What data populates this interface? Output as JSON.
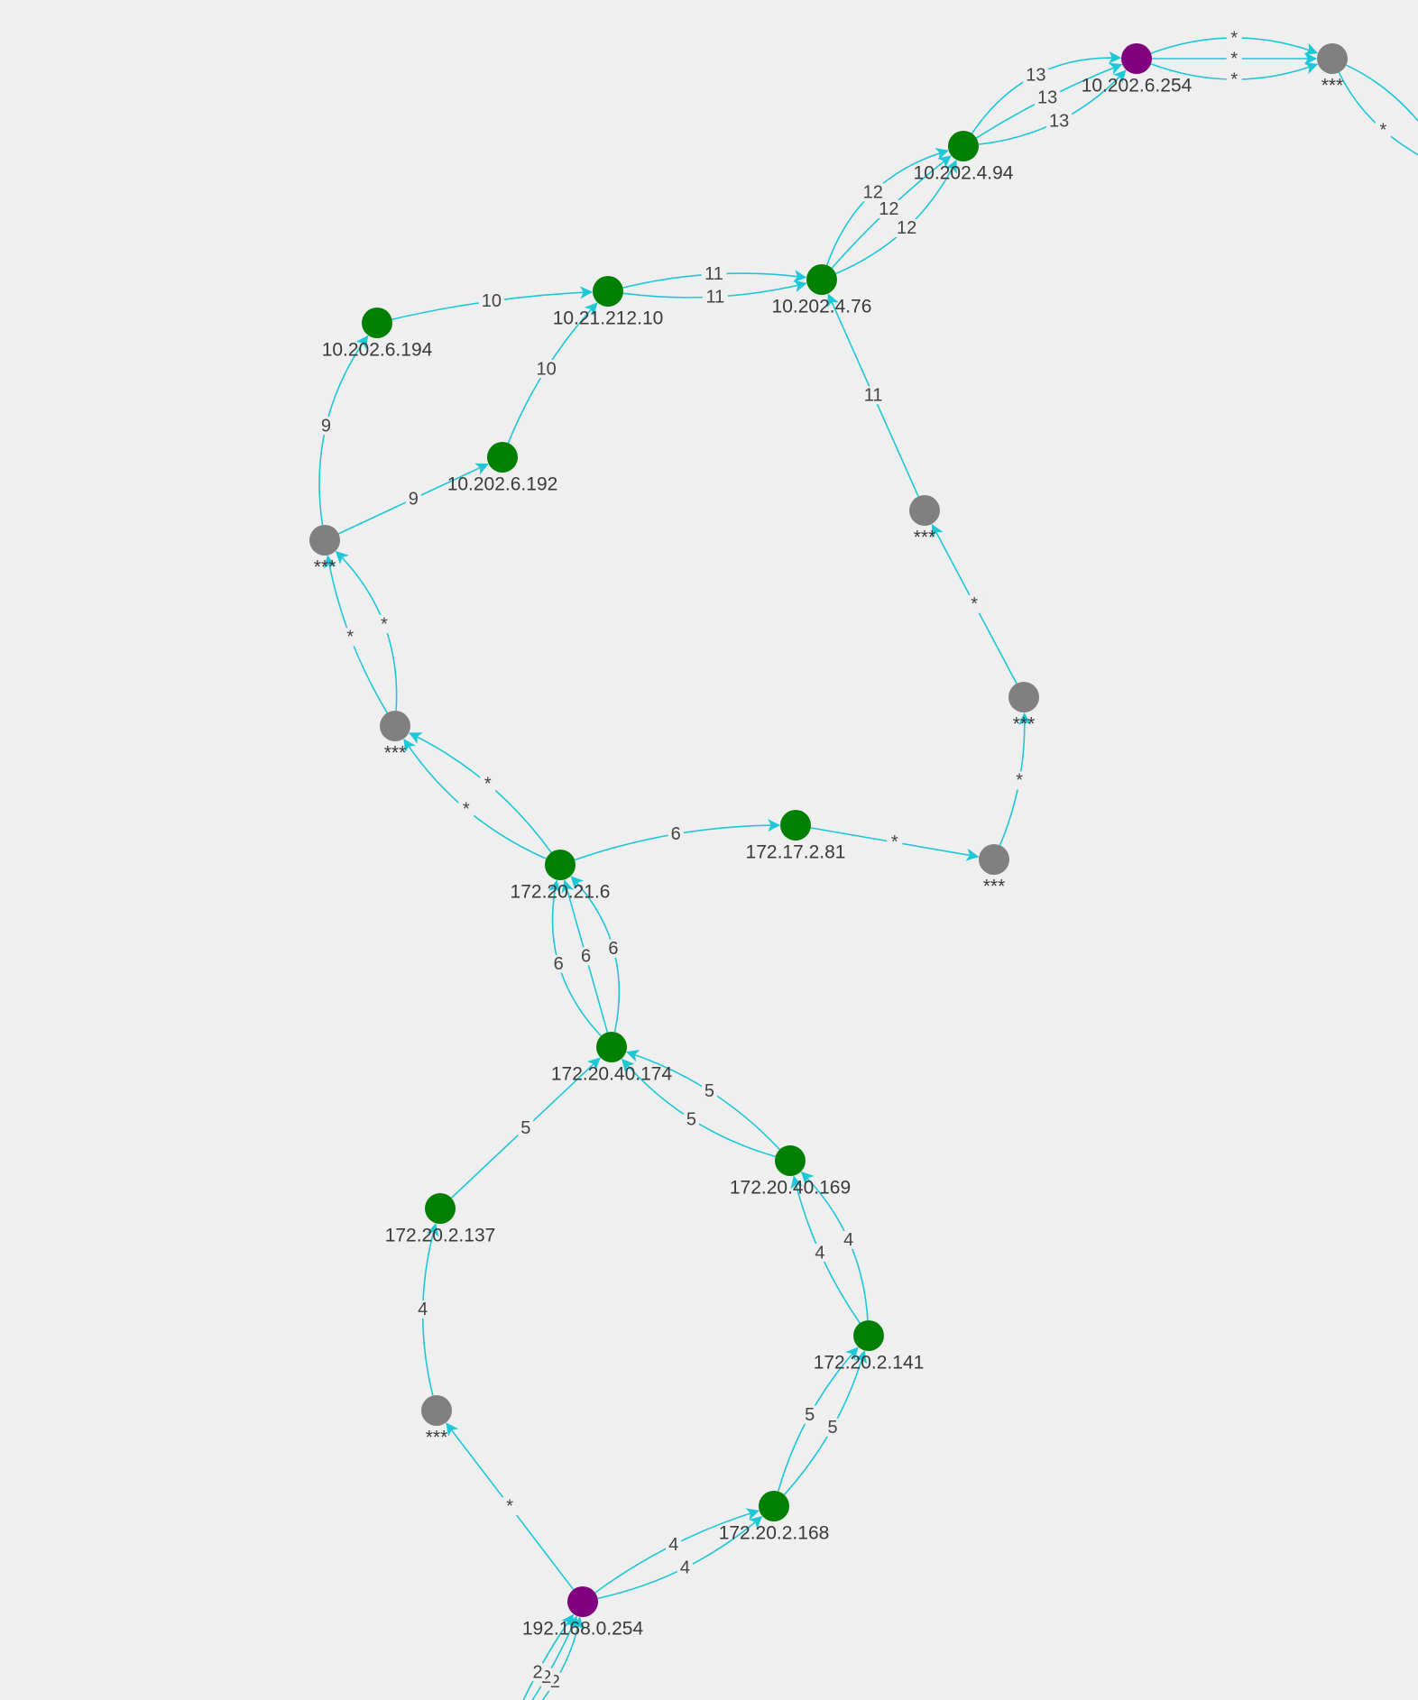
{
  "colors": {
    "background": "#efefef",
    "edge": "#1dc8d6",
    "label": "#3a3a3a",
    "edge_label": "#444444"
  },
  "node_colors": {
    "hop": "#008000",
    "endpoint": "#800080",
    "unknown": "#808080"
  },
  "nodes": [
    {
      "id": "n01",
      "label": "10.202.6.254",
      "kind": "endpoint"
    },
    {
      "id": "n02",
      "label": "***",
      "kind": "unknown"
    },
    {
      "id": "n03",
      "label": "10.202.4.94",
      "kind": "hop"
    },
    {
      "id": "n04",
      "label": "10.21.212.10",
      "kind": "hop"
    },
    {
      "id": "n05",
      "label": "10.202.4.76",
      "kind": "hop"
    },
    {
      "id": "n06",
      "label": "10.202.6.194",
      "kind": "hop"
    },
    {
      "id": "n07",
      "label": "10.202.6.192",
      "kind": "hop"
    },
    {
      "id": "n08",
      "label": "***",
      "kind": "unknown"
    },
    {
      "id": "n09",
      "label": "***",
      "kind": "unknown"
    },
    {
      "id": "n10",
      "label": "***",
      "kind": "unknown"
    },
    {
      "id": "n11",
      "label": "***",
      "kind": "unknown"
    },
    {
      "id": "n12",
      "label": "172.17.2.81",
      "kind": "hop"
    },
    {
      "id": "n13",
      "label": "***",
      "kind": "unknown"
    },
    {
      "id": "n14",
      "label": "172.20.21.6",
      "kind": "hop"
    },
    {
      "id": "n15",
      "label": "172.20.40.174",
      "kind": "hop"
    },
    {
      "id": "n16",
      "label": "172.20.40.169",
      "kind": "hop"
    },
    {
      "id": "n17",
      "label": "172.20.2.137",
      "kind": "hop"
    },
    {
      "id": "n18",
      "label": "172.20.2.141",
      "kind": "hop"
    },
    {
      "id": "n19",
      "label": "***",
      "kind": "unknown"
    },
    {
      "id": "n20",
      "label": "172.20.2.168",
      "kind": "hop"
    },
    {
      "id": "n21",
      "label": "192.168.0.254",
      "kind": "endpoint"
    }
  ],
  "edges": [
    {
      "from": "n01",
      "to": "n02",
      "label": "*"
    },
    {
      "from": "n01",
      "to": "n02",
      "label": "*"
    },
    {
      "from": "n01",
      "to": "n02",
      "label": "*"
    },
    {
      "from": "n02",
      "to": "offscreen-right",
      "label": ""
    },
    {
      "from": "n02",
      "to": "offscreen-right",
      "label": "*"
    },
    {
      "from": "n03",
      "to": "n01",
      "label": "13"
    },
    {
      "from": "n03",
      "to": "n01",
      "label": "13"
    },
    {
      "from": "n03",
      "to": "n01",
      "label": "13"
    },
    {
      "from": "n05",
      "to": "n03",
      "label": "12"
    },
    {
      "from": "n05",
      "to": "n03",
      "label": "12"
    },
    {
      "from": "n05",
      "to": "n03",
      "label": "12"
    },
    {
      "from": "n04",
      "to": "n05",
      "label": "11"
    },
    {
      "from": "n04",
      "to": "n05",
      "label": "11"
    },
    {
      "from": "n08",
      "to": "n05",
      "label": "11"
    },
    {
      "from": "n06",
      "to": "n04",
      "label": "10"
    },
    {
      "from": "n07",
      "to": "n04",
      "label": "10"
    },
    {
      "from": "n09",
      "to": "n06",
      "label": "9"
    },
    {
      "from": "n09",
      "to": "n07",
      "label": "9"
    },
    {
      "from": "n10",
      "to": "n09",
      "label": "*"
    },
    {
      "from": "n10",
      "to": "n09",
      "label": "*"
    },
    {
      "from": "n14",
      "to": "n10",
      "label": "*"
    },
    {
      "from": "n14",
      "to": "n10",
      "label": "*"
    },
    {
      "from": "n14",
      "to": "n12",
      "label": "6"
    },
    {
      "from": "n12",
      "to": "n13",
      "label": "*"
    },
    {
      "from": "n13",
      "to": "n11",
      "label": "*"
    },
    {
      "from": "n11",
      "to": "n08",
      "label": "*"
    },
    {
      "from": "n15",
      "to": "n14",
      "label": "6"
    },
    {
      "from": "n15",
      "to": "n14",
      "label": "6"
    },
    {
      "from": "n15",
      "to": "n14",
      "label": "6"
    },
    {
      "from": "n17",
      "to": "n15",
      "label": "5"
    },
    {
      "from": "n16",
      "to": "n15",
      "label": "5"
    },
    {
      "from": "n16",
      "to": "n15",
      "label": "5"
    },
    {
      "from": "n18",
      "to": "n16",
      "label": "4"
    },
    {
      "from": "n18",
      "to": "n16",
      "label": "4"
    },
    {
      "from": "n19",
      "to": "n17",
      "label": "4"
    },
    {
      "from": "n20",
      "to": "n18",
      "label": "5"
    },
    {
      "from": "n20",
      "to": "n18",
      "label": "5"
    },
    {
      "from": "n21",
      "to": "n20",
      "label": "4"
    },
    {
      "from": "n21",
      "to": "n20",
      "label": "4"
    },
    {
      "from": "n21",
      "to": "n19",
      "label": "*"
    },
    {
      "from": "offscreen-bottom",
      "to": "n21",
      "label": "2"
    },
    {
      "from": "offscreen-bottom",
      "to": "n21",
      "label": "2"
    },
    {
      "from": "offscreen-bottom",
      "to": "n21",
      "label": "2"
    }
  ]
}
